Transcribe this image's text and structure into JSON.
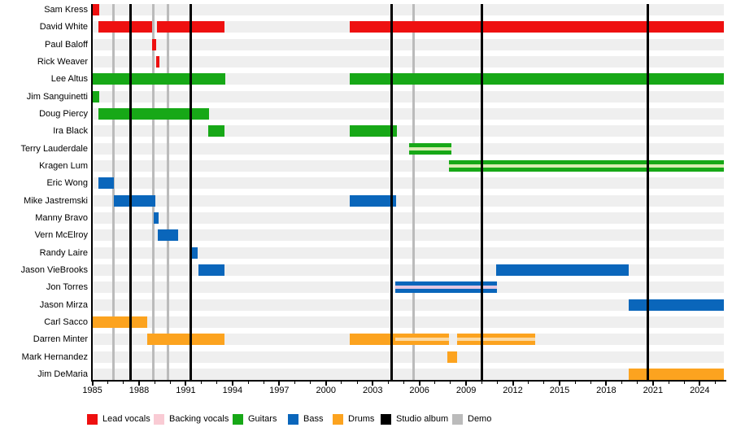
{
  "chart_data": {
    "type": "bar",
    "subtype": "band-membership-timeline",
    "title": "",
    "x_axis": {
      "min": 1984.97,
      "max": 2025.55,
      "major_tick_years": [
        1985,
        1988,
        1991,
        1994,
        1997,
        2000,
        2003,
        2006,
        2009,
        2012,
        2015,
        2018,
        2021,
        2024
      ],
      "minor_tick_every": 1,
      "grid": false
    },
    "legend_position": "bottom",
    "legend": [
      {
        "label": "Lead vocals",
        "color_key": "lead_vocals"
      },
      {
        "label": "Backing vocals",
        "color_key": "backing_vocals"
      },
      {
        "label": "Guitars",
        "color_key": "guitars"
      },
      {
        "label": "Bass",
        "color_key": "bass"
      },
      {
        "label": "Drums",
        "color_key": "drums"
      },
      {
        "label": "Studio album",
        "color_key": "studio_album"
      },
      {
        "label": "Demo",
        "color_key": "demo"
      }
    ],
    "members": [
      {
        "name": "Sam Kress",
        "role": "lead_vocals",
        "segments": [
          {
            "start": 1984.97,
            "end": 1985.45
          }
        ]
      },
      {
        "name": "David White",
        "role": "lead_vocals",
        "segments": [
          {
            "start": 1985.4,
            "end": 1988.86
          },
          {
            "start": 1989.15,
            "end": 1993.5
          },
          {
            "start": 2001.55,
            "end": 2025.55
          }
        ]
      },
      {
        "name": "Paul Baloff",
        "role": "lead_vocals",
        "segments": [
          {
            "start": 1988.86,
            "end": 1989.12
          }
        ]
      },
      {
        "name": "Rick Weaver",
        "role": "lead_vocals",
        "segments": [
          {
            "start": 1989.12,
            "end": 1989.3
          }
        ]
      },
      {
        "name": "Lee Altus",
        "role": "guitars",
        "segments": [
          {
            "start": 1984.97,
            "end": 1993.55
          },
          {
            "start": 2001.55,
            "end": 2025.55
          }
        ]
      },
      {
        "name": "Jim Sanguinetti",
        "role": "guitars",
        "segments": [
          {
            "start": 1984.97,
            "end": 1985.45
          }
        ]
      },
      {
        "name": "Doug Piercy",
        "role": "guitars",
        "segments": [
          {
            "start": 1985.4,
            "end": 1992.5
          }
        ]
      },
      {
        "name": "Ira Black",
        "role": "guitars",
        "segments": [
          {
            "start": 1992.45,
            "end": 1993.5
          },
          {
            "start": 2001.55,
            "end": 2004.55
          }
        ]
      },
      {
        "name": "Terry Lauderdale",
        "role": "guitars",
        "segments": [
          {
            "start": 2005.35,
            "end": 2008.05,
            "backing": true
          }
        ]
      },
      {
        "name": "Kragen Lum",
        "role": "guitars",
        "segments": [
          {
            "start": 2007.9,
            "end": 2025.55,
            "backing": true
          }
        ]
      },
      {
        "name": "Eric Wong",
        "role": "bass",
        "segments": [
          {
            "start": 1985.4,
            "end": 1986.4
          }
        ]
      },
      {
        "name": "Mike Jastremski",
        "role": "bass",
        "segments": [
          {
            "start": 1986.4,
            "end": 1989.05
          },
          {
            "start": 2001.55,
            "end": 2004.5
          }
        ]
      },
      {
        "name": "Manny Bravo",
        "role": "bass",
        "segments": [
          {
            "start": 1988.95,
            "end": 1989.27
          }
        ]
      },
      {
        "name": "Vern McElroy",
        "role": "bass",
        "segments": [
          {
            "start": 1989.22,
            "end": 1990.5
          }
        ]
      },
      {
        "name": "Randy Laire",
        "role": "bass",
        "segments": [
          {
            "start": 1991.3,
            "end": 1991.77
          }
        ]
      },
      {
        "name": "Jason VieBrooks",
        "role": "bass",
        "segments": [
          {
            "start": 1991.8,
            "end": 1993.48
          },
          {
            "start": 2010.95,
            "end": 2019.42
          }
        ]
      },
      {
        "name": "Jon Torres",
        "role": "bass",
        "segments": [
          {
            "start": 2004.45,
            "end": 2011.0,
            "backing": true
          }
        ]
      },
      {
        "name": "Jason Mirza",
        "role": "bass",
        "segments": [
          {
            "start": 2019.42,
            "end": 2025.55
          }
        ]
      },
      {
        "name": "Carl Sacco",
        "role": "drums",
        "segments": [
          {
            "start": 1984.97,
            "end": 1988.5
          }
        ]
      },
      {
        "name": "Darren Minter",
        "role": "drums",
        "segments": [
          {
            "start": 1988.5,
            "end": 1993.48
          },
          {
            "start": 2001.5,
            "end": 2007.88,
            "backing_from": 2004.45
          },
          {
            "start": 2008.42,
            "end": 2013.45,
            "backing": true
          }
        ]
      },
      {
        "name": "Mark Hernandez",
        "role": "drums",
        "segments": [
          {
            "start": 2007.8,
            "end": 2008.4
          }
        ]
      },
      {
        "name": "Jim DeMaria",
        "role": "drums",
        "segments": [
          {
            "start": 2019.42,
            "end": 2025.55
          }
        ]
      }
    ],
    "events": {
      "studio_albums": [
        1987.45,
        1991.34,
        2004.24,
        2009.99,
        2020.69
      ],
      "demos": [
        1986.33,
        1988.89,
        1989.83,
        2005.6
      ]
    }
  },
  "colors": {
    "lead_vocals": "#EE1010",
    "backing_vocals": "#F9CBD4",
    "guitars": "#17A817",
    "bass": "#0A66BB",
    "drums": "#FCA31F",
    "studio_album": "#000000",
    "demo": "#BBBBBB",
    "row_band": "#EFEFEF",
    "backing_stripe": {
      "guitars": "#D9ECB2",
      "bass": "#E3C7E2",
      "drums": "#FBD9A4"
    },
    "axis": "#000000",
    "text": "#000000"
  }
}
